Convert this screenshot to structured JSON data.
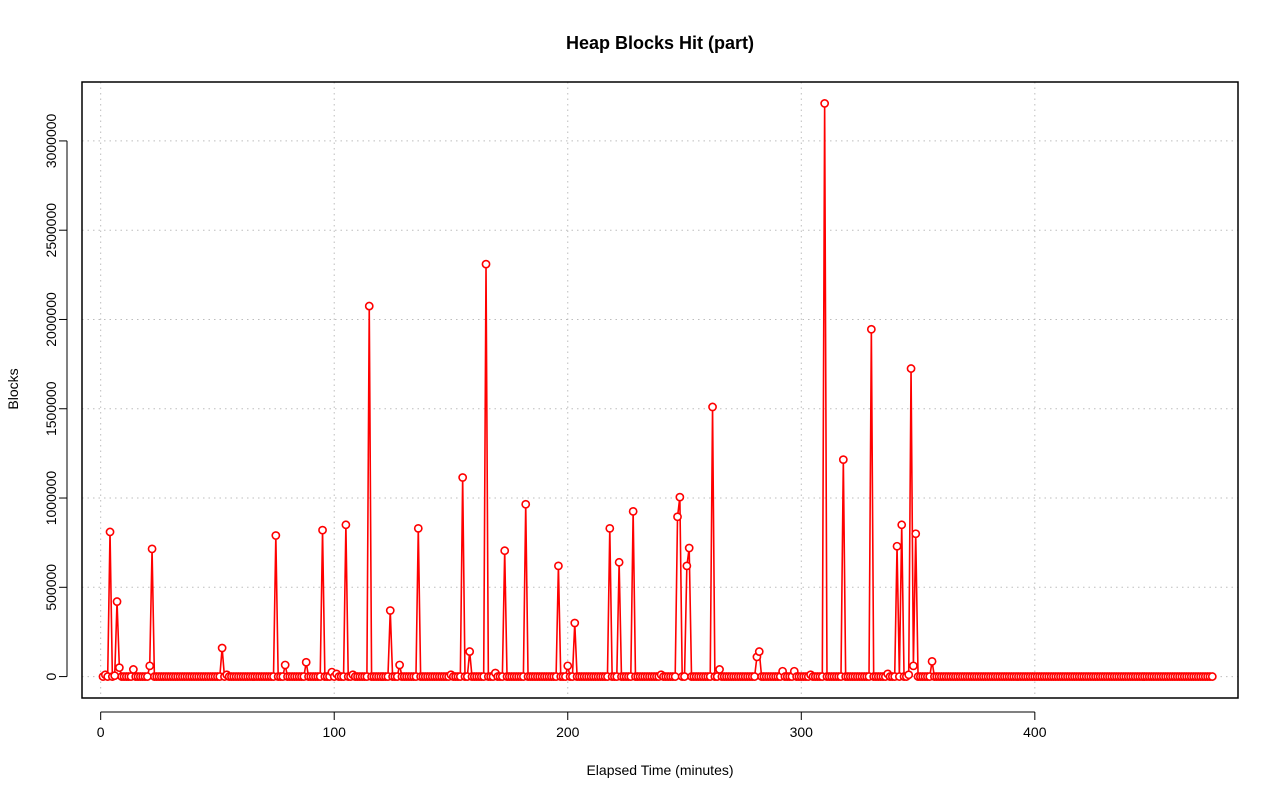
{
  "chart_data": {
    "type": "line",
    "title": "Heap Blocks Hit (part)",
    "xlabel": "Elapsed Time (minutes)",
    "ylabel": "Blocks",
    "xlim": [
      -8,
      487
    ],
    "ylim": [
      -120000,
      3330000
    ],
    "x_ticks": [
      0,
      100,
      200,
      300,
      400
    ],
    "y_ticks": [
      0,
      500000,
      1000000,
      1500000,
      2000000,
      2500000,
      3000000
    ],
    "grid": true,
    "line_style": "line-with-circle-markers",
    "color": "#ff0000",
    "baseline_points": {
      "x_start": 1,
      "x_end": 476,
      "step": 1,
      "default_value": 0
    },
    "points": [
      [
        2,
        10000
      ],
      [
        4,
        810000
      ],
      [
        6,
        5000
      ],
      [
        7,
        420000
      ],
      [
        8,
        50000
      ],
      [
        14,
        40000
      ],
      [
        21,
        60000
      ],
      [
        22,
        715000
      ],
      [
        52,
        160000
      ],
      [
        54,
        10000
      ],
      [
        75,
        790000
      ],
      [
        79,
        65000
      ],
      [
        88,
        80000
      ],
      [
        95,
        820000
      ],
      [
        99,
        25000
      ],
      [
        101,
        15000
      ],
      [
        105,
        850000
      ],
      [
        108,
        10000
      ],
      [
        115,
        2075000
      ],
      [
        124,
        370000
      ],
      [
        128,
        65000
      ],
      [
        136,
        830000
      ],
      [
        150,
        10000
      ],
      [
        155,
        1115000
      ],
      [
        158,
        140000
      ],
      [
        165,
        2310000
      ],
      [
        169,
        20000
      ],
      [
        173,
        705000
      ],
      [
        182,
        965000
      ],
      [
        196,
        620000
      ],
      [
        200,
        60000
      ],
      [
        203,
        300000
      ],
      [
        218,
        830000
      ],
      [
        222,
        640000
      ],
      [
        228,
        925000
      ],
      [
        240,
        10000
      ],
      [
        247,
        895000
      ],
      [
        248,
        1005000
      ],
      [
        251,
        620000
      ],
      [
        252,
        720000
      ],
      [
        262,
        1510000
      ],
      [
        265,
        40000
      ],
      [
        281,
        110000
      ],
      [
        282,
        140000
      ],
      [
        292,
        30000
      ],
      [
        297,
        30000
      ],
      [
        304,
        10000
      ],
      [
        310,
        3210000
      ],
      [
        318,
        1215000
      ],
      [
        330,
        1945000
      ],
      [
        337,
        15000
      ],
      [
        341,
        730000
      ],
      [
        343,
        850000
      ],
      [
        346,
        10000
      ],
      [
        347,
        1725000
      ],
      [
        348,
        60000
      ],
      [
        349,
        800000
      ],
      [
        356,
        85000
      ]
    ]
  }
}
